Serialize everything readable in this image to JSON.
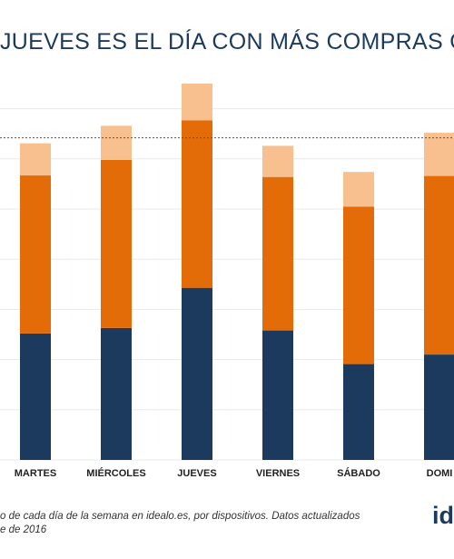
{
  "title": "JUEVES ES EL DÍA CON MÁS COMPRAS ON",
  "footnote": {
    "line1": "o de cada día de la semana en idealo.es, por dispositivos. Datos actualizados",
    "line2": "e de 2016"
  },
  "logo_text": "id",
  "colors": {
    "bottom": "#1b3a5e",
    "middle": "#e36c09",
    "top": "#f9c08f",
    "grid": "#e8e8e8",
    "reference_line": "#555555",
    "axis_label": "#222222"
  },
  "chart_data": {
    "type": "bar",
    "stacked": true,
    "categories": [
      "",
      "MARTES",
      "MIÉRCOLES",
      "JUEVES",
      "VIERNES",
      "SÁBADO",
      "DOMI"
    ],
    "series": [
      {
        "values": [
          0,
          25.2,
          26.3,
          34.3,
          25.8,
          19.1,
          21.0
        ]
      },
      {
        "values": [
          0,
          31.5,
          33.5,
          33.4,
          30.6,
          31.4,
          35.6
        ]
      },
      {
        "values": [
          0,
          6.4,
          6.8,
          7.3,
          6.2,
          6.9,
          8.6
        ]
      }
    ],
    "reference_line": 64.2,
    "ylim": [
      0,
      75
    ],
    "grid": true,
    "xlabel": "",
    "ylabel": ""
  }
}
